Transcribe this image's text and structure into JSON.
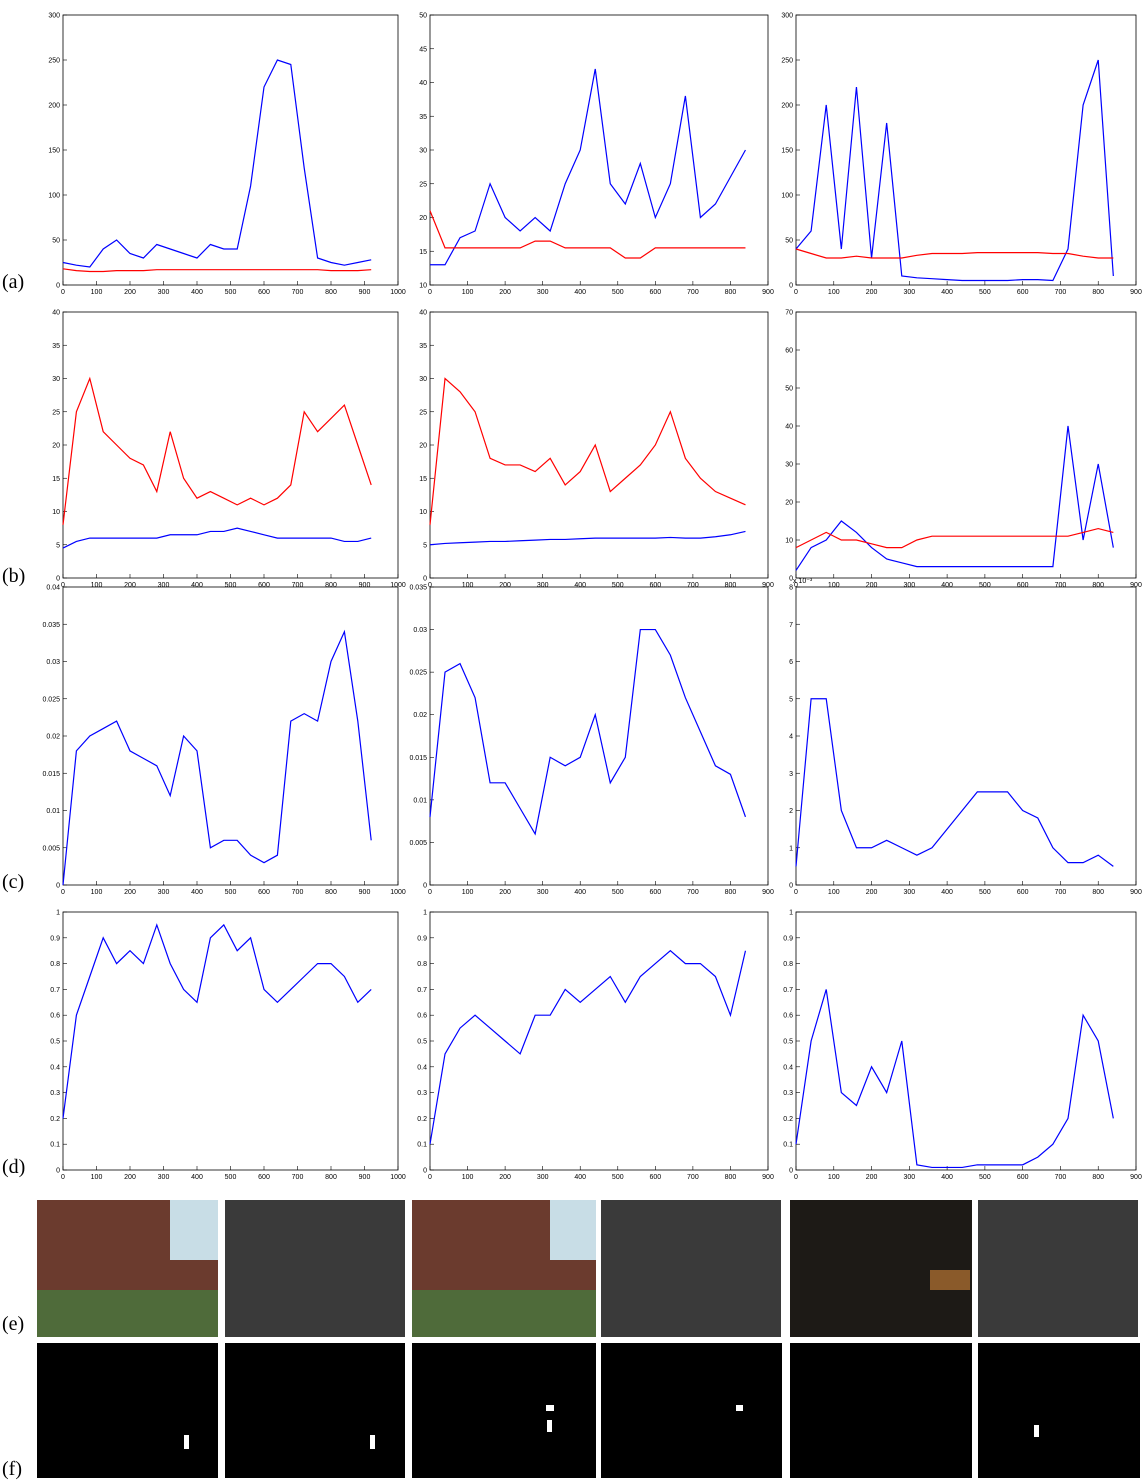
{
  "row_labels": [
    "(a)",
    "(b)",
    "(c)",
    "(d)",
    "(e)",
    "(f)"
  ],
  "chart_data": [
    {
      "type": "line",
      "xlim": [
        0,
        1000
      ],
      "xticks": [
        0,
        100,
        200,
        300,
        400,
        500,
        600,
        700,
        800,
        900,
        1000
      ],
      "ylim": [
        0,
        300
      ],
      "yticks": [
        0,
        50,
        100,
        150,
        200,
        250,
        300
      ],
      "x": [
        0,
        40,
        80,
        120,
        160,
        200,
        240,
        280,
        320,
        360,
        400,
        440,
        480,
        520,
        560,
        600,
        640,
        680,
        720,
        760,
        800,
        840,
        880,
        920
      ],
      "series": [
        {
          "color": "#0000ff",
          "values": [
            25,
            22,
            20,
            40,
            50,
            35,
            30,
            45,
            40,
            35,
            30,
            45,
            40,
            40,
            110,
            220,
            250,
            245,
            130,
            30,
            25,
            22,
            25,
            28
          ]
        },
        {
          "color": "#ff0000",
          "values": [
            18,
            16,
            15,
            15,
            16,
            16,
            16,
            17,
            17,
            17,
            17,
            17,
            17,
            17,
            17,
            17,
            17,
            17,
            17,
            17,
            16,
            16,
            16,
            17
          ]
        }
      ]
    },
    {
      "type": "line",
      "xlim": [
        0,
        900
      ],
      "xticks": [
        0,
        100,
        200,
        300,
        400,
        500,
        600,
        700,
        800,
        900
      ],
      "ylim": [
        10,
        50
      ],
      "yticks": [
        10,
        15,
        20,
        25,
        30,
        35,
        40,
        45,
        50
      ],
      "x": [
        0,
        40,
        80,
        120,
        160,
        200,
        240,
        280,
        320,
        360,
        400,
        440,
        480,
        520,
        560,
        600,
        640,
        680,
        720,
        760,
        800,
        840
      ],
      "series": [
        {
          "color": "#0000ff",
          "values": [
            13,
            13,
            17,
            18,
            25,
            20,
            18,
            20,
            18,
            25,
            30,
            42,
            25,
            22,
            28,
            20,
            25,
            38,
            20,
            22,
            26,
            30
          ]
        },
        {
          "color": "#ff0000",
          "values": [
            21,
            15.5,
            15.5,
            15.5,
            15.5,
            15.5,
            15.5,
            16.5,
            16.5,
            15.5,
            15.5,
            15.5,
            15.5,
            14,
            14,
            15.5,
            15.5,
            15.5,
            15.5,
            15.5,
            15.5,
            15.5
          ]
        }
      ]
    },
    {
      "type": "line",
      "xlim": [
        0,
        900
      ],
      "xticks": [
        0,
        100,
        200,
        300,
        400,
        500,
        600,
        700,
        800,
        900
      ],
      "ylim": [
        0,
        300
      ],
      "yticks": [
        0,
        50,
        100,
        150,
        200,
        250,
        300
      ],
      "x": [
        0,
        40,
        80,
        120,
        160,
        200,
        240,
        280,
        320,
        360,
        400,
        440,
        480,
        520,
        560,
        600,
        640,
        680,
        720,
        760,
        800,
        840
      ],
      "series": [
        {
          "color": "#0000ff",
          "values": [
            40,
            60,
            200,
            40,
            220,
            30,
            180,
            10,
            8,
            7,
            6,
            5,
            5,
            5,
            5,
            6,
            6,
            5,
            40,
            200,
            250,
            10
          ]
        },
        {
          "color": "#ff0000",
          "values": [
            40,
            35,
            30,
            30,
            32,
            30,
            30,
            30,
            33,
            35,
            35,
            35,
            36,
            36,
            36,
            36,
            36,
            35,
            35,
            32,
            30,
            30
          ]
        }
      ]
    },
    {
      "type": "line",
      "xlim": [
        0,
        1000
      ],
      "xticks": [
        0,
        100,
        200,
        300,
        400,
        500,
        600,
        700,
        800,
        900,
        1000
      ],
      "ylim": [
        0,
        40
      ],
      "yticks": [
        0,
        5,
        10,
        15,
        20,
        25,
        30,
        35,
        40
      ],
      "x": [
        0,
        40,
        80,
        120,
        160,
        200,
        240,
        280,
        320,
        360,
        400,
        440,
        480,
        520,
        560,
        600,
        640,
        680,
        720,
        760,
        800,
        840,
        880,
        920
      ],
      "series": [
        {
          "color": "#ff0000",
          "values": [
            8,
            25,
            30,
            22,
            20,
            18,
            17,
            13,
            22,
            15,
            12,
            13,
            12,
            11,
            12,
            11,
            12,
            14,
            25,
            22,
            24,
            26,
            20,
            14
          ]
        },
        {
          "color": "#0000ff",
          "values": [
            4.5,
            5.5,
            6,
            6,
            6,
            6,
            6,
            6,
            6.5,
            6.5,
            6.5,
            7,
            7,
            7.5,
            7,
            6.5,
            6,
            6,
            6,
            6,
            6,
            5.5,
            5.5,
            6
          ]
        }
      ]
    },
    {
      "type": "line",
      "xlim": [
        0,
        900
      ],
      "xticks": [
        0,
        100,
        200,
        300,
        400,
        500,
        600,
        700,
        800,
        900
      ],
      "ylim": [
        0,
        40
      ],
      "yticks": [
        0,
        5,
        10,
        15,
        20,
        25,
        30,
        35,
        40
      ],
      "x": [
        0,
        40,
        80,
        120,
        160,
        200,
        240,
        280,
        320,
        360,
        400,
        440,
        480,
        520,
        560,
        600,
        640,
        680,
        720,
        760,
        800,
        840
      ],
      "series": [
        {
          "color": "#ff0000",
          "values": [
            8,
            30,
            28,
            25,
            18,
            17,
            17,
            16,
            18,
            14,
            16,
            20,
            13,
            15,
            17,
            20,
            25,
            18,
            15,
            13,
            12,
            11
          ]
        },
        {
          "color": "#0000ff",
          "values": [
            5,
            5.2,
            5.3,
            5.4,
            5.5,
            5.5,
            5.6,
            5.7,
            5.8,
            5.8,
            5.9,
            6,
            6,
            6,
            6,
            6,
            6.1,
            6,
            6,
            6.2,
            6.5,
            7
          ]
        }
      ]
    },
    {
      "type": "line",
      "xlim": [
        0,
        900
      ],
      "xticks": [
        0,
        100,
        200,
        300,
        400,
        500,
        600,
        700,
        800,
        900
      ],
      "ylim": [
        0,
        70
      ],
      "yticks": [
        0,
        10,
        20,
        30,
        40,
        50,
        60,
        70
      ],
      "x": [
        0,
        40,
        80,
        120,
        160,
        200,
        240,
        280,
        320,
        360,
        400,
        440,
        480,
        520,
        560,
        600,
        640,
        680,
        720,
        760,
        800,
        840
      ],
      "series": [
        {
          "color": "#0000ff",
          "values": [
            2,
            8,
            10,
            15,
            12,
            8,
            5,
            4,
            3,
            3,
            3,
            3,
            3,
            3,
            3,
            3,
            3,
            3,
            40,
            10,
            30,
            8
          ]
        },
        {
          "color": "#ff0000",
          "values": [
            8,
            10,
            12,
            10,
            10,
            9,
            8,
            8,
            10,
            11,
            11,
            11,
            11,
            11,
            11,
            11,
            11,
            11,
            11,
            12,
            13,
            12
          ]
        }
      ]
    },
    {
      "type": "line",
      "xlim": [
        0,
        1000
      ],
      "xticks": [
        0,
        100,
        200,
        300,
        400,
        500,
        600,
        700,
        800,
        900,
        1000
      ],
      "ylim": [
        0,
        0.04
      ],
      "yticks": [
        0,
        0.005,
        0.01,
        0.015,
        0.02,
        0.025,
        0.03,
        0.035,
        0.04
      ],
      "x": [
        0,
        40,
        80,
        120,
        160,
        200,
        240,
        280,
        320,
        360,
        400,
        440,
        480,
        520,
        560,
        600,
        640,
        680,
        720,
        760,
        800,
        840,
        880,
        920
      ],
      "series": [
        {
          "color": "#0000ff",
          "values": [
            0,
            0.018,
            0.02,
            0.021,
            0.022,
            0.018,
            0.017,
            0.016,
            0.012,
            0.02,
            0.018,
            0.005,
            0.006,
            0.006,
            0.004,
            0.003,
            0.004,
            0.022,
            0.023,
            0.022,
            0.03,
            0.034,
            0.022,
            0.006
          ]
        }
      ]
    },
    {
      "type": "line",
      "xlim": [
        0,
        900
      ],
      "xticks": [
        0,
        100,
        200,
        300,
        400,
        500,
        600,
        700,
        800,
        900
      ],
      "ylim": [
        0,
        0.035
      ],
      "yticks": [
        0,
        0.005,
        0.01,
        0.015,
        0.02,
        0.025,
        0.03,
        0.035
      ],
      "x": [
        0,
        40,
        80,
        120,
        160,
        200,
        240,
        280,
        320,
        360,
        400,
        440,
        480,
        520,
        560,
        600,
        640,
        680,
        720,
        760,
        800,
        840
      ],
      "series": [
        {
          "color": "#0000ff",
          "values": [
            0.008,
            0.025,
            0.026,
            0.022,
            0.012,
            0.012,
            0.009,
            0.006,
            0.015,
            0.014,
            0.015,
            0.02,
            0.012,
            0.015,
            0.03,
            0.03,
            0.027,
            0.022,
            0.018,
            0.014,
            0.013,
            0.008
          ]
        }
      ]
    },
    {
      "type": "line",
      "xlim": [
        0,
        900
      ],
      "xticks": [
        0,
        100,
        200,
        300,
        400,
        500,
        600,
        700,
        800,
        900
      ],
      "ylim": [
        0,
        8
      ],
      "yticks": [
        0,
        1,
        2,
        3,
        4,
        5,
        6,
        7,
        8
      ],
      "y_multiplier": "x 10⁻³",
      "x": [
        0,
        40,
        80,
        120,
        160,
        200,
        240,
        280,
        320,
        360,
        400,
        440,
        480,
        520,
        560,
        600,
        640,
        680,
        720,
        760,
        800,
        840
      ],
      "series": [
        {
          "color": "#0000ff",
          "values": [
            0.5,
            5,
            5,
            2,
            1,
            1,
            1.2,
            1,
            0.8,
            1,
            1.5,
            2,
            2.5,
            2.5,
            2.5,
            2,
            1.8,
            1,
            0.6,
            0.6,
            0.8,
            0.5
          ]
        }
      ]
    },
    {
      "type": "line",
      "xlim": [
        0,
        1000
      ],
      "xticks": [
        0,
        100,
        200,
        300,
        400,
        500,
        600,
        700,
        800,
        900,
        1000
      ],
      "ylim": [
        0,
        1
      ],
      "yticks": [
        0,
        0.1,
        0.2,
        0.3,
        0.4,
        0.5,
        0.6,
        0.7,
        0.8,
        0.9,
        1
      ],
      "x": [
        0,
        40,
        80,
        120,
        160,
        200,
        240,
        280,
        320,
        360,
        400,
        440,
        480,
        520,
        560,
        600,
        640,
        680,
        720,
        760,
        800,
        840,
        880,
        920
      ],
      "series": [
        {
          "color": "#0000ff",
          "values": [
            0.2,
            0.6,
            0.75,
            0.9,
            0.8,
            0.85,
            0.8,
            0.95,
            0.8,
            0.7,
            0.65,
            0.9,
            0.95,
            0.85,
            0.9,
            0.7,
            0.65,
            0.7,
            0.75,
            0.8,
            0.8,
            0.75,
            0.65,
            0.7
          ]
        }
      ]
    },
    {
      "type": "line",
      "xlim": [
        0,
        900
      ],
      "xticks": [
        0,
        100,
        200,
        300,
        400,
        500,
        600,
        700,
        800,
        900
      ],
      "ylim": [
        0,
        1
      ],
      "yticks": [
        0,
        0.1,
        0.2,
        0.3,
        0.4,
        0.5,
        0.6,
        0.7,
        0.8,
        0.9,
        1
      ],
      "x": [
        0,
        40,
        80,
        120,
        160,
        200,
        240,
        280,
        320,
        360,
        400,
        440,
        480,
        520,
        560,
        600,
        640,
        680,
        720,
        760,
        800,
        840
      ],
      "series": [
        {
          "color": "#0000ff",
          "values": [
            0.1,
            0.45,
            0.55,
            0.6,
            0.55,
            0.5,
            0.45,
            0.6,
            0.6,
            0.7,
            0.65,
            0.7,
            0.75,
            0.65,
            0.75,
            0.8,
            0.85,
            0.8,
            0.8,
            0.75,
            0.6,
            0.85
          ]
        }
      ]
    },
    {
      "type": "line",
      "xlim": [
        0,
        900
      ],
      "xticks": [
        0,
        100,
        200,
        300,
        400,
        500,
        600,
        700,
        800,
        900
      ],
      "ylim": [
        0,
        1
      ],
      "yticks": [
        0,
        0.1,
        0.2,
        0.3,
        0.4,
        0.5,
        0.6,
        0.7,
        0.8,
        0.9,
        1
      ],
      "x": [
        0,
        40,
        80,
        120,
        160,
        200,
        240,
        280,
        320,
        360,
        400,
        440,
        480,
        520,
        560,
        600,
        640,
        680,
        720,
        760,
        800,
        840
      ],
      "series": [
        {
          "color": "#0000ff",
          "values": [
            0.1,
            0.5,
            0.7,
            0.3,
            0.25,
            0.4,
            0.3,
            0.5,
            0.02,
            0.01,
            0.01,
            0.01,
            0.02,
            0.02,
            0.02,
            0.02,
            0.05,
            0.1,
            0.2,
            0.6,
            0.5,
            0.2
          ]
        }
      ]
    }
  ]
}
